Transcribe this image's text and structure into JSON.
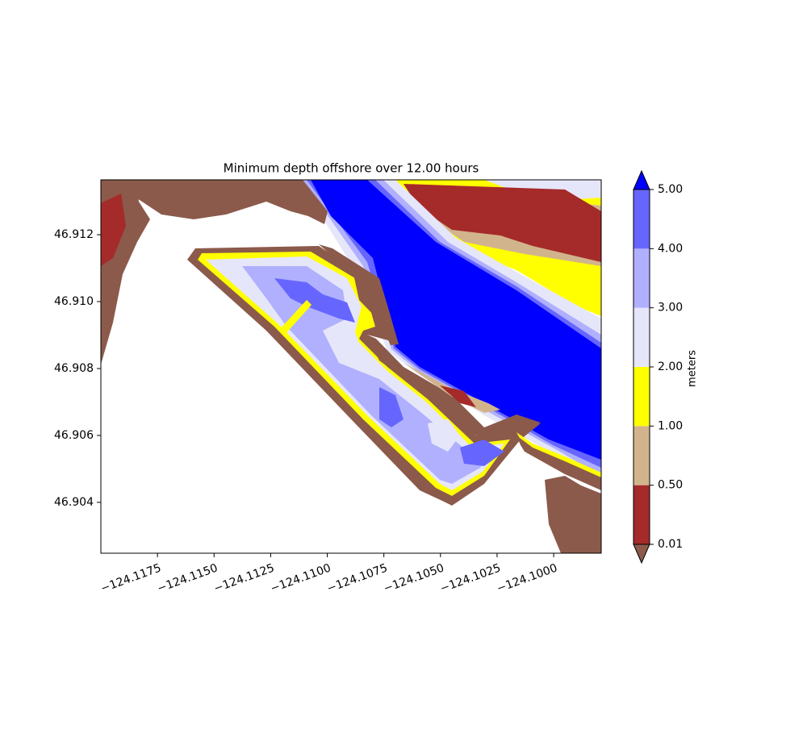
{
  "chart_data": {
    "type": "contour",
    "title": "Minimum depth offshore over 12.00 hours",
    "xlim": [
      -124.12,
      -124.0979
    ],
    "ylim": [
      46.90248,
      46.91364
    ],
    "xticks": [
      {
        "value": -124.1175,
        "label": "−124.1175"
      },
      {
        "value": -124.115,
        "label": "−124.1150"
      },
      {
        "value": -124.1125,
        "label": "−124.1125"
      },
      {
        "value": -124.11,
        "label": "−124.1100"
      },
      {
        "value": -124.1075,
        "label": "−124.1075"
      },
      {
        "value": -124.105,
        "label": "−124.1050"
      },
      {
        "value": -124.1025,
        "label": "−124.1025"
      },
      {
        "value": -124.1,
        "label": "−124.1000"
      }
    ],
    "yticks": [
      46.904,
      46.906,
      46.908,
      {
        "value": 46.91,
        "label": "46.910"
      },
      46.912
    ],
    "colorbar": {
      "label": "meters",
      "levels": [
        0.01,
        {
          "value": 0.5,
          "label": "0.50"
        },
        {
          "value": 1,
          "label": "1.00"
        },
        {
          "value": 2,
          "label": "2.00"
        },
        {
          "value": 3,
          "label": "3.00"
        },
        {
          "value": 4,
          "label": "4.00"
        },
        {
          "value": 5,
          "label": "5.00"
        }
      ],
      "colors": [
        "#a52a2a",
        "#d2b48c",
        "#ffff00",
        "#e6e6fa",
        "#b0b0ff",
        "#6666ff"
      ],
      "under_color": "#8b5a4b",
      "over_color": "#0000ff"
    }
  }
}
